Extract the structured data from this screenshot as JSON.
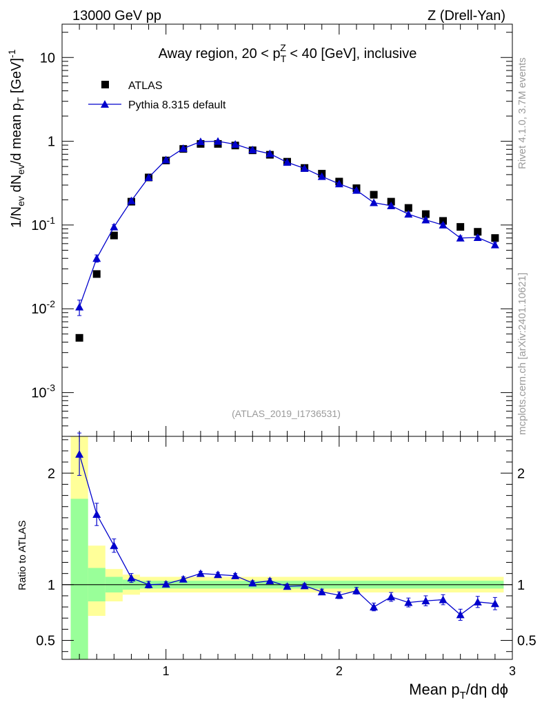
{
  "header": {
    "left": "13000 GeV pp",
    "right": "Z (Drell-Yan)"
  },
  "side_labels": {
    "rivet": "Rivet 4.1.0,  3.7M events",
    "mcplots": "mcplots.cern.ch [arXiv:2401.10621]"
  },
  "chart_data": {
    "type": "scatter",
    "title": "Away region, 20 < p_T^Z < 40 [GeV], inclusive",
    "analysis_id": "(ATLAS_2019_I1736531)",
    "xlabel": "Mean p_T/dη dϕ",
    "ylabel_main": "1/N_ev dN_ev/d mean p_T [GeV]^-1",
    "ylabel_ratio": "Ratio to ATLAS",
    "xlim": [
      0.4,
      3.0
    ],
    "ylim_main": [
      0.0003,
      25
    ],
    "ylim_ratio": [
      0.33,
      2.33
    ],
    "yscale_main": "log",
    "x_ticks": [
      "1",
      "2",
      "3"
    ],
    "y_ticks_main": [
      "10^-3",
      "10^-2",
      "10^-1",
      "1",
      "10"
    ],
    "y_ticks_ratio": [
      "0.5",
      "1",
      "2"
    ],
    "legend": [
      "ATLAS",
      "Pythia 8.315 default"
    ],
    "legend_position": "top-left",
    "x": [
      0.5,
      0.6,
      0.7,
      0.8,
      0.9,
      1.0,
      1.1,
      1.2,
      1.3,
      1.4,
      1.5,
      1.6,
      1.7,
      1.8,
      1.9,
      2.0,
      2.1,
      2.2,
      2.3,
      2.4,
      2.5,
      2.6,
      2.7,
      2.8,
      2.9
    ],
    "series": [
      {
        "name": "ATLAS",
        "color": "#000000",
        "marker": "square",
        "values": [
          0.0045,
          0.026,
          0.075,
          0.19,
          0.37,
          0.59,
          0.81,
          0.93,
          0.93,
          0.89,
          0.78,
          0.69,
          0.57,
          0.48,
          0.41,
          0.33,
          0.275,
          0.23,
          0.19,
          0.16,
          0.135,
          0.112,
          0.095,
          0.083,
          0.07
        ]
      },
      {
        "name": "Pythia 8.315 default",
        "color": "#0000cc",
        "marker": "triangle",
        "values": [
          0.0105,
          0.04,
          0.095,
          0.195,
          0.37,
          0.6,
          0.82,
          0.99,
          1.0,
          0.92,
          0.79,
          0.71,
          0.56,
          0.475,
          0.38,
          0.31,
          0.26,
          0.185,
          0.17,
          0.135,
          0.115,
          0.1,
          0.07,
          0.071,
          0.058
        ],
        "err_low": [
          0.0022,
          0.004,
          0.006,
          0.008,
          0.01,
          0.012,
          0.015,
          0.018,
          0.018,
          0.016,
          0.014,
          0.012,
          0.01,
          0.009,
          0.008,
          0.007,
          0.006,
          0.006,
          0.006,
          0.005,
          0.005,
          0.005,
          0.004,
          0.004,
          0.004
        ]
      }
    ],
    "ratio": {
      "values": [
        2.17,
        1.63,
        1.35,
        1.06,
        1.0,
        1.005,
        1.05,
        1.1,
        1.09,
        1.08,
        1.015,
        1.035,
        0.985,
        0.99,
        0.935,
        0.905,
        0.945,
        0.8,
        0.89,
        0.84,
        0.855,
        0.865,
        0.73,
        0.845,
        0.83
      ],
      "err": [
        0.19,
        0.1,
        0.06,
        0.04,
        0.03,
        0.02,
        0.02,
        0.02,
        0.02,
        0.02,
        0.02,
        0.02,
        0.02,
        0.02,
        0.025,
        0.03,
        0.03,
        0.035,
        0.04,
        0.04,
        0.045,
        0.045,
        0.05,
        0.05,
        0.055
      ],
      "bands": [
        {
          "x0": 0.45,
          "x1": 0.55,
          "yellow": [
            0.33,
            2.33
          ],
          "green": [
            0.33,
            1.77
          ]
        },
        {
          "x0": 0.55,
          "x1": 0.65,
          "yellow": [
            0.72,
            1.35
          ],
          "green": [
            0.85,
            1.15
          ]
        },
        {
          "x0": 0.65,
          "x1": 0.75,
          "yellow": [
            0.85,
            1.14
          ],
          "green": [
            0.93,
            1.07
          ]
        },
        {
          "x0": 0.75,
          "x1": 0.85,
          "yellow": [
            0.91,
            1.09
          ],
          "green": [
            0.955,
            1.045
          ]
        },
        {
          "x0": 0.85,
          "x1": 2.95,
          "yellow": [
            0.93,
            1.07
          ],
          "green": [
            0.965,
            1.035
          ]
        }
      ]
    }
  }
}
